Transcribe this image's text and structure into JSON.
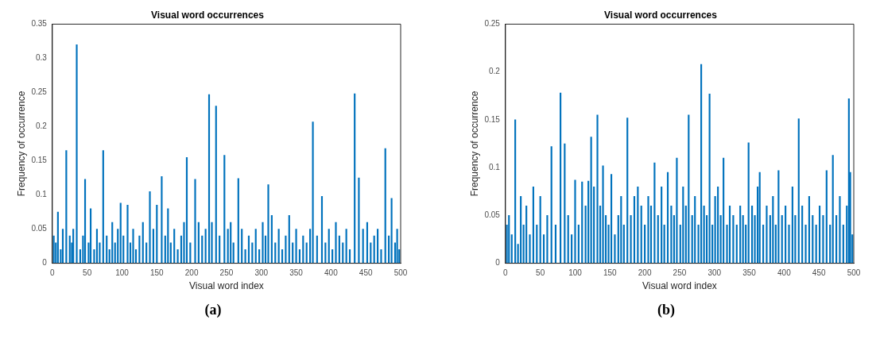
{
  "chart_data": [
    {
      "type": "bar",
      "title": "Visual word occurrences",
      "xlabel": "Visual word index",
      "ylabel": "Frequency of occurrence",
      "color": "#0072bd",
      "x": [
        2,
        5,
        8,
        12,
        15,
        20,
        25,
        28,
        30,
        35,
        40,
        44,
        47,
        52,
        55,
        60,
        64,
        68,
        73,
        78,
        82,
        86,
        90,
        94,
        98,
        102,
        108,
        112,
        116,
        120,
        125,
        130,
        135,
        140,
        145,
        150,
        157,
        162,
        166,
        170,
        175,
        180,
        185,
        189,
        193,
        198,
        205,
        210,
        215,
        220,
        225,
        229,
        235,
        240,
        247,
        252,
        256,
        260,
        267,
        272,
        277,
        282,
        287,
        292,
        297,
        302,
        306,
        310,
        315,
        320,
        325,
        330,
        335,
        340,
        345,
        350,
        355,
        360,
        365,
        370,
        374,
        380,
        387,
        392,
        397,
        402,
        407,
        412,
        417,
        422,
        427,
        434,
        440,
        446,
        452,
        457,
        462,
        467,
        472,
        478,
        483,
        487,
        492,
        495,
        498
      ],
      "values": [
        0.04,
        0.03,
        0.075,
        0.02,
        0.05,
        0.165,
        0.04,
        0.03,
        0.05,
        0.32,
        0.02,
        0.04,
        0.123,
        0.03,
        0.08,
        0.02,
        0.05,
        0.03,
        0.165,
        0.04,
        0.02,
        0.06,
        0.03,
        0.05,
        0.088,
        0.04,
        0.085,
        0.03,
        0.05,
        0.02,
        0.04,
        0.06,
        0.03,
        0.105,
        0.05,
        0.085,
        0.127,
        0.04,
        0.08,
        0.03,
        0.05,
        0.02,
        0.04,
        0.06,
        0.155,
        0.03,
        0.123,
        0.06,
        0.04,
        0.05,
        0.247,
        0.06,
        0.23,
        0.04,
        0.158,
        0.05,
        0.06,
        0.03,
        0.124,
        0.05,
        0.02,
        0.04,
        0.03,
        0.05,
        0.02,
        0.06,
        0.04,
        0.115,
        0.07,
        0.03,
        0.05,
        0.02,
        0.04,
        0.07,
        0.03,
        0.05,
        0.02,
        0.04,
        0.03,
        0.05,
        0.207,
        0.04,
        0.098,
        0.03,
        0.05,
        0.02,
        0.06,
        0.04,
        0.03,
        0.05,
        0.02,
        0.248,
        0.125,
        0.05,
        0.06,
        0.03,
        0.04,
        0.05,
        0.02,
        0.168,
        0.04,
        0.095,
        0.03,
        0.05,
        0.02
      ],
      "xlim": [
        0,
        500
      ],
      "xticks": [
        0,
        50,
        100,
        150,
        200,
        250,
        300,
        350,
        400,
        450,
        500
      ],
      "ylim": [
        0,
        0.35
      ],
      "yticks": [
        0,
        0.05,
        0.1,
        0.15,
        0.2,
        0.25,
        0.3,
        0.35
      ],
      "grid": false,
      "annotations": [
        "(a)"
      ]
    },
    {
      "type": "bar",
      "title": "Visual word occurrences",
      "xlabel": "Visual word index",
      "ylabel": "Frequency of occurrence",
      "color": "#0072bd",
      "x": [
        2,
        5,
        9,
        14,
        18,
        22,
        26,
        30,
        35,
        40,
        45,
        50,
        55,
        60,
        66,
        72,
        79,
        85,
        90,
        95,
        100,
        105,
        110,
        115,
        119,
        123,
        127,
        132,
        136,
        140,
        144,
        148,
        152,
        157,
        162,
        166,
        170,
        175,
        180,
        185,
        190,
        195,
        200,
        205,
        209,
        214,
        219,
        224,
        228,
        233,
        238,
        242,
        246,
        251,
        255,
        259,
        263,
        268,
        272,
        277,
        281,
        285,
        289,
        293,
        297,
        301,
        305,
        309,
        313,
        318,
        322,
        327,
        332,
        337,
        341,
        345,
        349,
        354,
        358,
        362,
        365,
        370,
        375,
        380,
        384,
        388,
        392,
        397,
        402,
        407,
        412,
        416,
        421,
        426,
        431,
        436,
        441,
        446,
        451,
        456,
        461,
        466,
        470,
        475,
        480,
        485,
        490,
        493,
        495,
        498
      ],
      "values": [
        0.04,
        0.05,
        0.03,
        0.15,
        0.02,
        0.07,
        0.04,
        0.06,
        0.03,
        0.08,
        0.04,
        0.07,
        0.03,
        0.05,
        0.122,
        0.04,
        0.178,
        0.125,
        0.05,
        0.03,
        0.087,
        0.04,
        0.085,
        0.06,
        0.086,
        0.132,
        0.08,
        0.155,
        0.06,
        0.102,
        0.05,
        0.04,
        0.093,
        0.03,
        0.05,
        0.07,
        0.04,
        0.152,
        0.05,
        0.07,
        0.08,
        0.06,
        0.04,
        0.07,
        0.06,
        0.105,
        0.05,
        0.08,
        0.04,
        0.095,
        0.06,
        0.05,
        0.11,
        0.04,
        0.08,
        0.06,
        0.155,
        0.05,
        0.07,
        0.04,
        0.208,
        0.06,
        0.05,
        0.177,
        0.04,
        0.07,
        0.08,
        0.05,
        0.11,
        0.04,
        0.06,
        0.05,
        0.04,
        0.06,
        0.05,
        0.04,
        0.126,
        0.06,
        0.05,
        0.08,
        0.095,
        0.04,
        0.06,
        0.05,
        0.07,
        0.04,
        0.097,
        0.05,
        0.06,
        0.04,
        0.08,
        0.05,
        0.151,
        0.06,
        0.04,
        0.07,
        0.05,
        0.04,
        0.06,
        0.05,
        0.097,
        0.04,
        0.113,
        0.05,
        0.07,
        0.04,
        0.06,
        0.172,
        0.095,
        0.03
      ],
      "xlim": [
        0,
        500
      ],
      "xticks": [
        0,
        50,
        100,
        150,
        200,
        250,
        300,
        350,
        400,
        450,
        500
      ],
      "ylim": [
        0,
        0.25
      ],
      "yticks": [
        0,
        0.05,
        0.1,
        0.15,
        0.2,
        0.25
      ],
      "grid": false,
      "annotations": [
        "(b)"
      ]
    }
  ]
}
